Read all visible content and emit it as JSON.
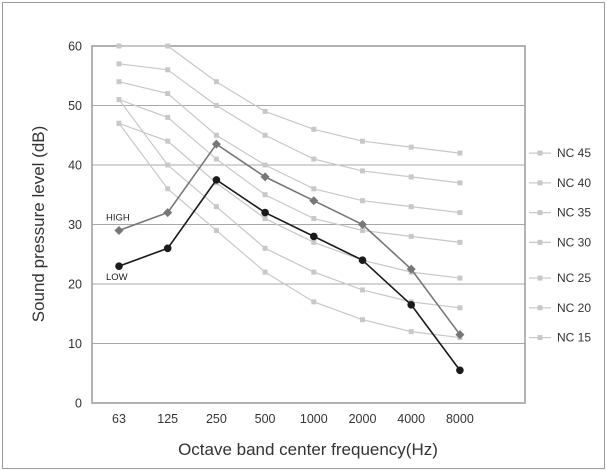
{
  "chart_data": {
    "type": "line",
    "xlabel": "Octave band center frequency(Hz)",
    "ylabel": "Sound pressure level (dB)",
    "categories": [
      "63",
      "125",
      "250",
      "500",
      "1000",
      "2000",
      "4000",
      "8000"
    ],
    "ylim": [
      0,
      60
    ],
    "yticks": [
      0,
      10,
      20,
      30,
      40,
      50,
      60
    ],
    "grid": true,
    "legend_position": "right",
    "series": [
      {
        "name": "NC 45",
        "values": [
          60,
          60,
          54,
          49,
          46,
          44,
          43,
          42
        ],
        "color": "#c8c8c8",
        "style": "reference"
      },
      {
        "name": "NC 40",
        "values": [
          57,
          56,
          50,
          45,
          41,
          39,
          38,
          37
        ],
        "color": "#c8c8c8",
        "style": "reference"
      },
      {
        "name": "NC 35",
        "values": [
          54,
          52,
          45,
          40,
          36,
          34,
          33,
          32
        ],
        "color": "#c8c8c8",
        "style": "reference"
      },
      {
        "name": "NC 30",
        "values": [
          51,
          48,
          41,
          35,
          31,
          29,
          28,
          27
        ],
        "color": "#c8c8c8",
        "style": "reference"
      },
      {
        "name": "NC 25",
        "values": [
          47,
          44,
          37,
          31,
          27,
          24,
          22,
          21
        ],
        "color": "#c8c8c8",
        "style": "reference"
      },
      {
        "name": "NC 20",
        "values": [
          51,
          40,
          33,
          26,
          22,
          19,
          17,
          16
        ],
        "color": "#c8c8c8",
        "style": "reference"
      },
      {
        "name": "NC 15",
        "values": [
          47,
          36,
          29,
          22,
          17,
          14,
          12,
          11
        ],
        "color": "#c8c8c8",
        "style": "reference"
      },
      {
        "name": "HIGH",
        "values": [
          29,
          32,
          43.5,
          38,
          34,
          30,
          22.5,
          11.5
        ],
        "color": "#777777",
        "marker": "diamond"
      },
      {
        "name": "LOW",
        "values": [
          23,
          26,
          37.5,
          32,
          28,
          24,
          16.5,
          5.5
        ],
        "color": "#1a1a1a",
        "marker": "circle"
      }
    ]
  }
}
